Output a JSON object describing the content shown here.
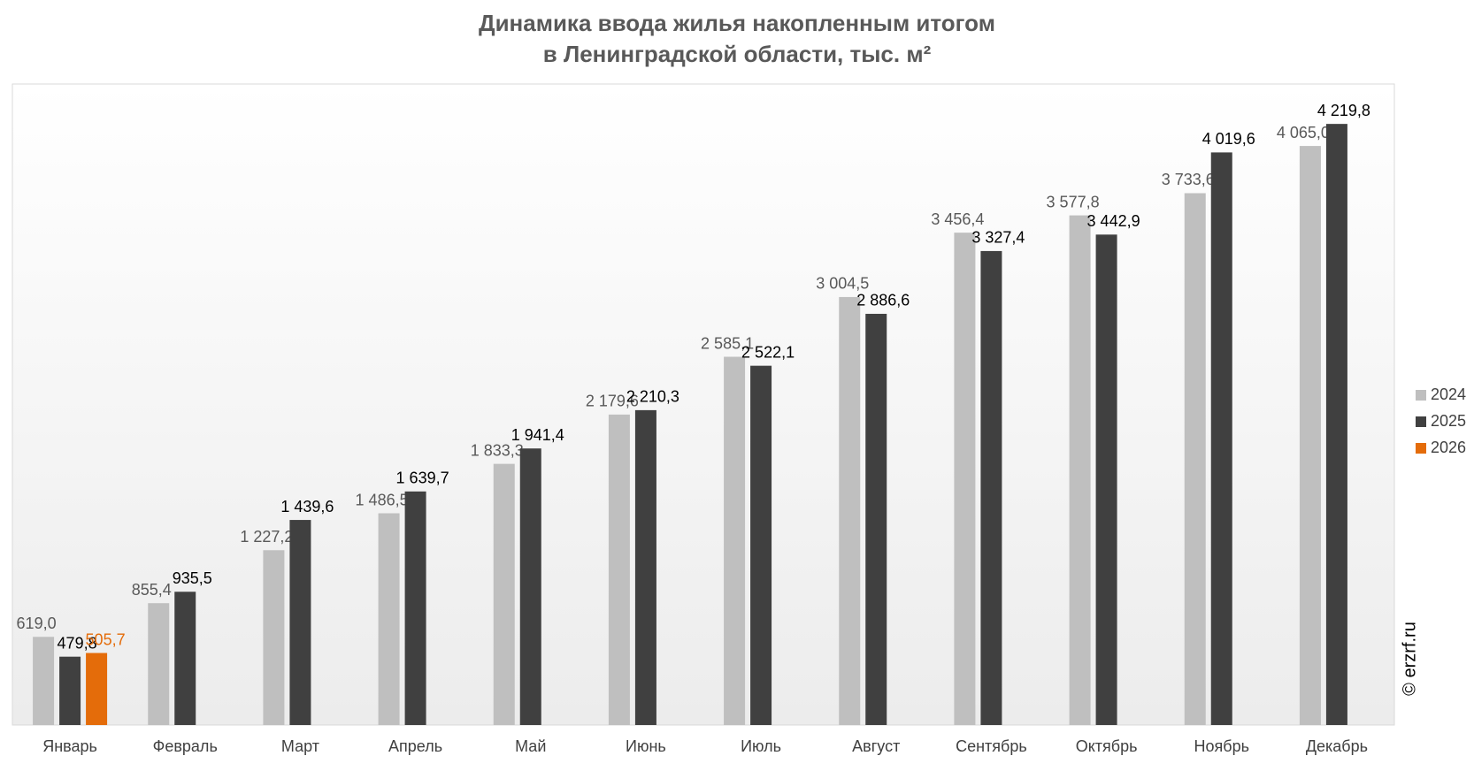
{
  "chart_data": {
    "type": "bar",
    "title": [
      "Динамика ввода жилья накопленным итогом",
      "в Ленинградской области, тыс. м²"
    ],
    "categories": [
      "Январь",
      "Февраль",
      "Март",
      "Апрель",
      "Май",
      "Июнь",
      "Июль",
      "Август",
      "Сентябрь",
      "Октябрь",
      "Ноябрь",
      "Декабрь"
    ],
    "series": [
      {
        "name": "2024",
        "color": "#bfbfbf",
        "label_color": "#595959",
        "values": [
          619.0,
          855.4,
          1227.2,
          1486.5,
          1833.3,
          2179.6,
          2585.1,
          3004.5,
          3456.4,
          3577.8,
          3733.6,
          4065.0
        ],
        "value_labels": [
          "619,0",
          "855,4",
          "1 227,2",
          "1 486,5",
          "1 833,3",
          "2 179,6",
          "2 585,1",
          "3 004,5",
          "3 456,4",
          "3 577,8",
          "3 733,6",
          "4 065,0"
        ]
      },
      {
        "name": "2025",
        "color": "#404040",
        "label_color": "#000000",
        "values": [
          479.8,
          935.5,
          1439.6,
          1639.7,
          1941.4,
          2210.3,
          2522.1,
          2886.6,
          3327.4,
          3442.9,
          4019.6,
          4219.8
        ],
        "value_labels": [
          "479,8",
          "935,5",
          "1 439,6",
          "1 639,7",
          "1 941,4",
          "2 210,3",
          "2 522,1",
          "2 886,6",
          "3 327,4",
          "3 442,9",
          "4 019,6",
          "4 219,8"
        ]
      },
      {
        "name": "2026",
        "color": "#e46c0a",
        "label_color": "#e46c0a",
        "values": [
          505.7,
          null,
          null,
          null,
          null,
          null,
          null,
          null,
          null,
          null,
          null,
          null
        ],
        "value_labels": [
          "505,7",
          null,
          null,
          null,
          null,
          null,
          null,
          null,
          null,
          null,
          null,
          null
        ]
      }
    ],
    "ylim": [
      0,
      4500
    ],
    "legend": "right",
    "watermark": "© erzrf.ru"
  }
}
